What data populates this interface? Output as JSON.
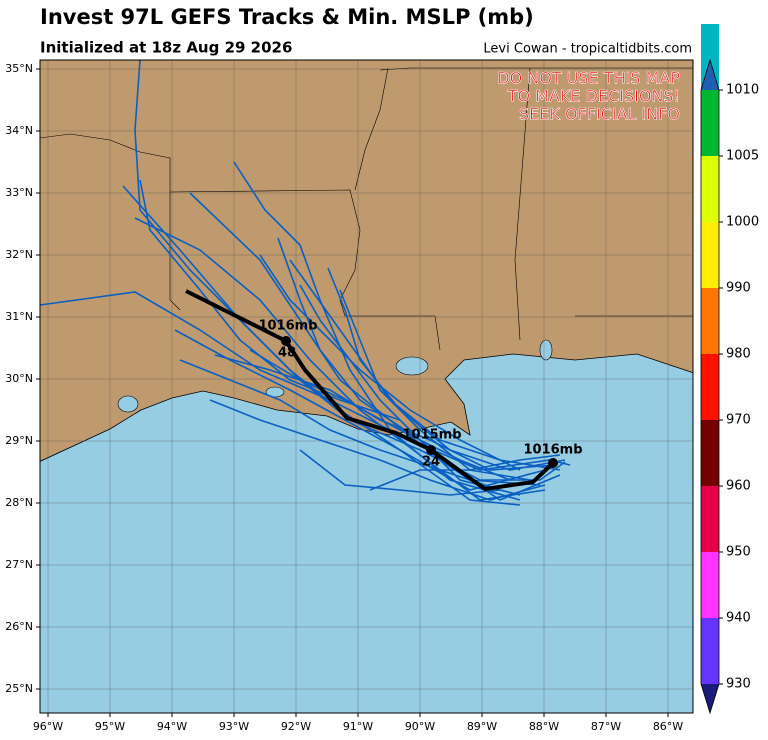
{
  "header": {
    "title": "Invest 97L GEFS Tracks & Min. MSLP (mb)",
    "subtitle": "Initialized at 18z Aug 29 2026",
    "credit": "Levi Cowan - tropicaltidbits.com"
  },
  "warning": [
    "DO NOT USE THIS MAP",
    "TO MAKE DECISIONS!",
    "SEEK OFFICIAL INFO"
  ],
  "lat_labels": [
    "35°N",
    "34°N",
    "33°N",
    "32°N",
    "31°N",
    "30°N",
    "29°N",
    "28°N",
    "27°N",
    "26°N",
    "25°N"
  ],
  "lon_labels": [
    "96°W",
    "95°W",
    "94°W",
    "93°W",
    "92°W",
    "91°W",
    "90°W",
    "89°W",
    "88°W",
    "87°W",
    "86°W"
  ],
  "track_labels": [
    "1016mb",
    "48",
    "1015mb",
    "24",
    "1016mb"
  ],
  "colorbar": {
    "ticks": [
      930,
      940,
      950,
      960,
      970,
      980,
      990,
      1000,
      1005,
      1010
    ],
    "colors": [
      "#6633ff",
      "#ff33ff",
      "#e6004c",
      "#740000",
      "#ff1100",
      "#ff7700",
      "#ffee00",
      "#ddff00",
      "#00b830",
      "#00b4c4"
    ]
  }
}
